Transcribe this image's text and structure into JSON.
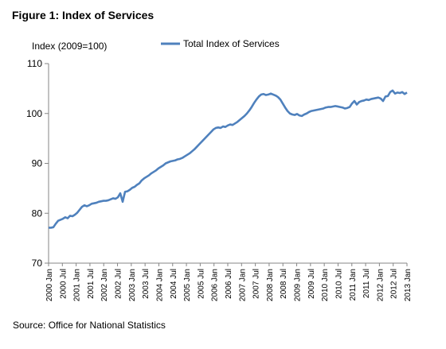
{
  "figure_title": "Figure 1: Index of Services",
  "source_note": "Source: Office for National Statistics",
  "chart_data": {
    "type": "line",
    "title": "Figure 1: Index of Services",
    "ylabel": "Index (2009=100)",
    "xlabel": "",
    "ylim": [
      70,
      110
    ],
    "yticks": [
      70,
      80,
      90,
      100,
      110
    ],
    "grid": false,
    "legend_placement": "top-center",
    "x_start": "2000-01",
    "x_end": "2013-01",
    "x_tick_labels": [
      "2000 Jan",
      "2000 Jul",
      "2001 Jan",
      "2001 Jul",
      "2002 Jan",
      "2002 Jul",
      "2003 Jan",
      "2003 Jul",
      "2004 Jan",
      "2004 Jul",
      "2005 Jan",
      "2005 Jul",
      "2006 Jan",
      "2006 Jul",
      "2007 Jan",
      "2007 Jul",
      "2008 Jan",
      "2008 Jul",
      "2009 Jan",
      "2009 Jul",
      "2010 Jan",
      "2010 Jul",
      "2011 Jan",
      "2011 Jul",
      "2012 Jan",
      "2012 Jul",
      "2013 Jan"
    ],
    "series": [
      {
        "name": "Total Index  of Services",
        "color": "#4f81bd",
        "values": [
          77.1,
          77.1,
          77.2,
          77.9,
          78.5,
          78.7,
          78.9,
          79.2,
          79.0,
          79.5,
          79.4,
          79.7,
          80.1,
          80.7,
          81.3,
          81.6,
          81.4,
          81.6,
          81.9,
          82.0,
          82.1,
          82.3,
          82.4,
          82.5,
          82.5,
          82.6,
          82.8,
          83.0,
          82.9,
          83.2,
          84.0,
          82.3,
          84.3,
          84.4,
          84.7,
          85.1,
          85.3,
          85.7,
          86.0,
          86.6,
          87.0,
          87.3,
          87.6,
          88.0,
          88.3,
          88.6,
          89.0,
          89.3,
          89.6,
          90.0,
          90.2,
          90.4,
          90.5,
          90.6,
          90.8,
          90.9,
          91.1,
          91.4,
          91.7,
          92.0,
          92.4,
          92.8,
          93.3,
          93.8,
          94.3,
          94.8,
          95.3,
          95.8,
          96.3,
          96.8,
          97.1,
          97.2,
          97.1,
          97.4,
          97.3,
          97.6,
          97.8,
          97.7,
          98.0,
          98.3,
          98.7,
          99.1,
          99.5,
          100.0,
          100.6,
          101.3,
          102.1,
          102.8,
          103.4,
          103.8,
          103.9,
          103.7,
          103.8,
          104.0,
          103.8,
          103.6,
          103.3,
          102.8,
          102.0,
          101.2,
          100.5,
          100.0,
          99.8,
          99.7,
          99.9,
          99.6,
          99.5,
          99.8,
          100.0,
          100.3,
          100.5,
          100.6,
          100.7,
          100.8,
          100.9,
          101.0,
          101.2,
          101.3,
          101.3,
          101.4,
          101.5,
          101.4,
          101.3,
          101.2,
          101.0,
          101.1,
          101.3,
          102.0,
          102.5,
          101.8,
          102.3,
          102.5,
          102.6,
          102.8,
          102.7,
          102.9,
          103.0,
          103.1,
          103.2,
          103.0,
          102.5,
          103.4,
          103.5,
          104.3,
          104.6,
          104.0,
          104.2,
          104.1,
          104.3,
          103.9,
          104.2
        ]
      }
    ]
  }
}
